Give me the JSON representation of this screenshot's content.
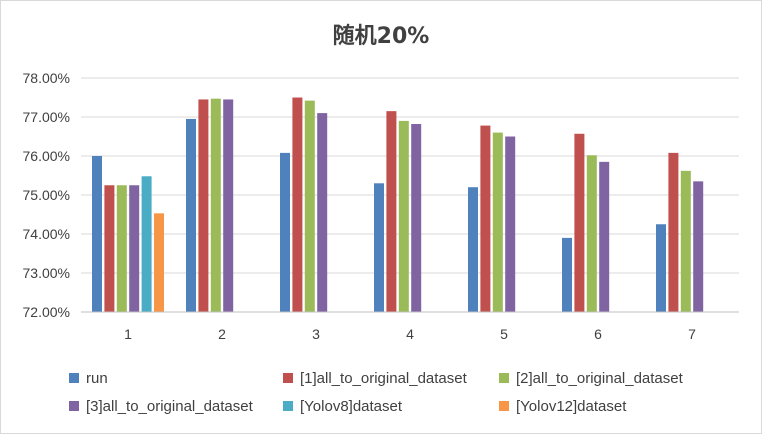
{
  "chart_data": {
    "type": "bar",
    "title": "随机20%",
    "xlabel": "",
    "ylabel": "",
    "categories": [
      "1",
      "2",
      "3",
      "4",
      "5",
      "6",
      "7"
    ],
    "ylim": [
      72.0,
      78.0
    ],
    "yticks": [
      "72.00%",
      "73.00%",
      "74.00%",
      "75.00%",
      "76.00%",
      "77.00%",
      "78.00%"
    ],
    "ytick_values": [
      72,
      73,
      74,
      75,
      76,
      77,
      78
    ],
    "grid": true,
    "legend_position": "bottom",
    "series": [
      {
        "name": "run",
        "color": "#4f81bd",
        "values": [
          76.0,
          76.95,
          76.08,
          75.3,
          75.2,
          73.9,
          74.25
        ]
      },
      {
        "name": "[1]all_to_original_dataset",
        "color": "#c0504d",
        "values": [
          75.25,
          77.45,
          77.5,
          77.15,
          76.78,
          76.57,
          76.08
        ]
      },
      {
        "name": "[2]all_to_original_dataset",
        "color": "#9bbb59",
        "values": [
          75.25,
          77.47,
          77.42,
          76.9,
          76.6,
          76.02,
          75.62
        ]
      },
      {
        "name": "[3]all_to_original_dataset",
        "color": "#8064a2",
        "values": [
          75.25,
          77.45,
          77.1,
          76.82,
          76.5,
          75.85,
          75.35
        ]
      },
      {
        "name": "[Yolov8]dataset",
        "color": "#4bacc6",
        "values": [
          75.48,
          null,
          null,
          null,
          null,
          null,
          null
        ]
      },
      {
        "name": "[Yolov12]dataset",
        "color": "#f79646",
        "values": [
          74.53,
          null,
          null,
          null,
          null,
          null,
          null
        ]
      }
    ]
  }
}
